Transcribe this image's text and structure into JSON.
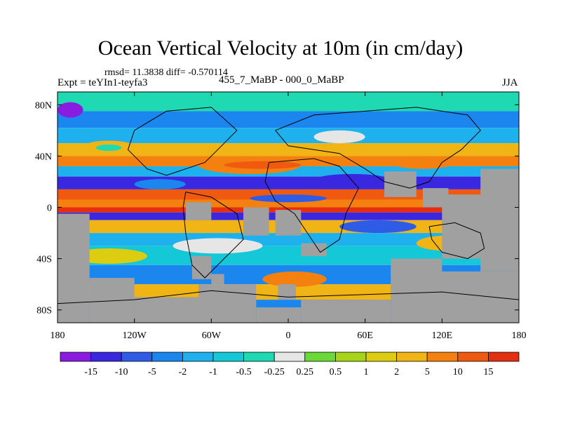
{
  "chart_data": {
    "type": "heatmap",
    "title": "Ocean Vertical Velocity at 10m (in cm/day)",
    "stats_line": "rmsd= 11.3838 diff= -0.570114",
    "experiment_label": "Expt = teYIn1-teyfa3",
    "case_label": "455_7_MaBP - 000_0_MaBP",
    "season_label": "JJA",
    "x_axis": {
      "range": [
        -180,
        180
      ],
      "ticks": [
        {
          "value": -180,
          "label": "180"
        },
        {
          "value": -120,
          "label": "120W"
        },
        {
          "value": -60,
          "label": "60W"
        },
        {
          "value": 0,
          "label": "0"
        },
        {
          "value": 60,
          "label": "60E"
        },
        {
          "value": 120,
          "label": "120E"
        },
        {
          "value": 180,
          "label": "180"
        }
      ]
    },
    "y_axis": {
      "range": [
        -90,
        90
      ],
      "ticks": [
        {
          "value": 80,
          "label": "80N"
        },
        {
          "value": 40,
          "label": "40N"
        },
        {
          "value": 0,
          "label": "0"
        },
        {
          "value": -40,
          "label": "40S"
        },
        {
          "value": -80,
          "label": "80S"
        }
      ]
    },
    "colorbar": {
      "colors": [
        "#8a1be0",
        "#3a28e0",
        "#2f5ce6",
        "#1a86ee",
        "#1eb1ee",
        "#15c8d8",
        "#1fd9b2",
        "#e6e6e6",
        "#6ad836",
        "#a7d416",
        "#dccd10",
        "#f0b414",
        "#f4800f",
        "#ef5a10",
        "#e42f10"
      ],
      "labels": [
        "-15",
        "-10",
        "-5",
        "-2",
        "-1",
        "-0.5",
        "-0.25",
        "0.25",
        "0.5",
        "1",
        "2",
        "5",
        "10",
        "15"
      ]
    },
    "zonal_bands": [
      {
        "lat_top": 90,
        "lat_bottom": 75,
        "level": 6
      },
      {
        "lat_top": 75,
        "lat_bottom": 62,
        "level": 3
      },
      {
        "lat_top": 62,
        "lat_bottom": 50,
        "level": 4
      },
      {
        "lat_top": 50,
        "lat_bottom": 40,
        "level": 11
      },
      {
        "lat_top": 40,
        "lat_bottom": 32,
        "level": 12
      },
      {
        "lat_top": 32,
        "lat_bottom": 24,
        "level": 4
      },
      {
        "lat_top": 24,
        "lat_bottom": 14,
        "level": 1
      },
      {
        "lat_top": 14,
        "lat_bottom": 6,
        "level": 13
      },
      {
        "lat_top": 6,
        "lat_bottom": 0,
        "level": 12
      },
      {
        "lat_top": 0,
        "lat_bottom": -4,
        "level": 14
      },
      {
        "lat_top": -4,
        "lat_bottom": -10,
        "level": 1
      },
      {
        "lat_top": -10,
        "lat_bottom": -20,
        "level": 11
      },
      {
        "lat_top": -20,
        "lat_bottom": -30,
        "level": 4
      },
      {
        "lat_top": -30,
        "lat_bottom": -45,
        "level": 5
      },
      {
        "lat_top": -45,
        "lat_bottom": -60,
        "level": 3
      },
      {
        "lat_top": -60,
        "lat_bottom": -72,
        "level": 11
      },
      {
        "lat_top": -72,
        "lat_bottom": -90,
        "level": 3
      }
    ],
    "patches": [
      {
        "lon": [
          -160,
          -120
        ],
        "lat": [
          52,
          42
        ],
        "level": 11
      },
      {
        "lon": [
          -150,
          -130
        ],
        "lat": [
          49,
          44
        ],
        "level": 6
      },
      {
        "lon": [
          -70,
          10
        ],
        "lat": [
          40,
          26
        ],
        "level": 12
      },
      {
        "lon": [
          -50,
          10
        ],
        "lat": [
          36,
          30
        ],
        "level": 13
      },
      {
        "lon": [
          20,
          80
        ],
        "lat": [
          26,
          16
        ],
        "level": 1
      },
      {
        "lon": [
          -120,
          -80
        ],
        "lat": [
          22,
          14
        ],
        "level": 3
      },
      {
        "lon": [
          -30,
          30
        ],
        "lat": [
          10,
          4
        ],
        "level": 2
      },
      {
        "lon": [
          80,
          130
        ],
        "lat": [
          40,
          30
        ],
        "level": 12
      },
      {
        "lon": [
          -170,
          -110
        ],
        "lat": [
          -32,
          -44
        ],
        "level": 10
      },
      {
        "lon": [
          -90,
          -20
        ],
        "lat": [
          -24,
          -36
        ],
        "level": 7
      },
      {
        "lon": [
          40,
          100
        ],
        "lat": [
          -10,
          -20
        ],
        "level": 2
      },
      {
        "lon": [
          100,
          150
        ],
        "lat": [
          -22,
          -34
        ],
        "level": 11
      },
      {
        "lon": [
          -20,
          30
        ],
        "lat": [
          -50,
          -62
        ],
        "level": 12
      },
      {
        "lon": [
          20,
          60
        ],
        "lat": [
          60,
          50
        ],
        "level": 7
      },
      {
        "lon": [
          -180,
          -160
        ],
        "lat": [
          82,
          70
        ],
        "level": 0
      }
    ],
    "land_masks": [
      {
        "lon": [
          -180,
          -155
        ],
        "lat": [
          -5,
          -90
        ]
      },
      {
        "lon": [
          -155,
          -120
        ],
        "lat": [
          -55,
          -90
        ]
      },
      {
        "lon": [
          -120,
          -70
        ],
        "lat": [
          -70,
          -90
        ]
      },
      {
        "lon": [
          -70,
          -25
        ],
        "lat": [
          -60,
          -90
        ]
      },
      {
        "lon": [
          -25,
          10
        ],
        "lat": [
          -78,
          -90
        ]
      },
      {
        "lon": [
          10,
          80
        ],
        "lat": [
          -72,
          -90
        ]
      },
      {
        "lon": [
          80,
          180
        ],
        "lat": [
          -50,
          -90
        ]
      },
      {
        "lon": [
          80,
          120
        ],
        "lat": [
          -40,
          -52
        ]
      },
      {
        "lon": [
          150,
          180
        ],
        "lat": [
          30,
          -50
        ]
      },
      {
        "lon": [
          120,
          160
        ],
        "lat": [
          10,
          -40
        ]
      },
      {
        "lon": [
          -35,
          -15
        ],
        "lat": [
          0,
          -22
        ]
      },
      {
        "lon": [
          -10,
          10
        ],
        "lat": [
          -2,
          -22
        ]
      },
      {
        "lon": [
          10,
          30
        ],
        "lat": [
          -28,
          -38
        ]
      },
      {
        "lon": [
          -75,
          -60
        ],
        "lat": [
          -38,
          -56
        ]
      },
      {
        "lon": [
          -60,
          -50
        ],
        "lat": [
          -52,
          -60
        ]
      },
      {
        "lon": [
          75,
          100
        ],
        "lat": [
          28,
          8
        ]
      },
      {
        "lon": [
          105,
          125
        ],
        "lat": [
          15,
          0
        ]
      },
      {
        "lon": [
          -80,
          -60
        ],
        "lat": [
          4,
          -10
        ]
      },
      {
        "lon": [
          -8,
          6
        ],
        "lat": [
          -60,
          -72
        ]
      }
    ],
    "continent_outlines": [
      [
        [
          -120,
          60
        ],
        [
          -95,
          75
        ],
        [
          -60,
          78
        ],
        [
          -40,
          60
        ],
        [
          -55,
          45
        ],
        [
          -65,
          35
        ],
        [
          -80,
          30
        ],
        [
          -95,
          25
        ],
        [
          -110,
          30
        ],
        [
          -125,
          45
        ],
        [
          -120,
          60
        ]
      ],
      [
        [
          -80,
          12
        ],
        [
          -60,
          8
        ],
        [
          -40,
          -5
        ],
        [
          -35,
          -25
        ],
        [
          -50,
          -40
        ],
        [
          -65,
          -55
        ],
        [
          -75,
          -45
        ],
        [
          -80,
          -20
        ],
        [
          -82,
          0
        ],
        [
          -80,
          12
        ]
      ],
      [
        [
          -15,
          35
        ],
        [
          20,
          38
        ],
        [
          40,
          32
        ],
        [
          55,
          15
        ],
        [
          45,
          -5
        ],
        [
          40,
          -25
        ],
        [
          25,
          -35
        ],
        [
          15,
          -20
        ],
        [
          5,
          -5
        ],
        [
          -10,
          5
        ],
        [
          -18,
          20
        ],
        [
          -15,
          35
        ]
      ],
      [
        [
          -10,
          60
        ],
        [
          20,
          72
        ],
        [
          60,
          75
        ],
        [
          100,
          78
        ],
        [
          140,
          72
        ],
        [
          150,
          60
        ],
        [
          135,
          45
        ],
        [
          120,
          35
        ],
        [
          110,
          20
        ],
        [
          95,
          15
        ],
        [
          75,
          20
        ],
        [
          60,
          30
        ],
        [
          40,
          42
        ],
        [
          20,
          45
        ],
        [
          0,
          48
        ],
        [
          -10,
          60
        ]
      ],
      [
        [
          110,
          -15
        ],
        [
          130,
          -12
        ],
        [
          150,
          -20
        ],
        [
          153,
          -32
        ],
        [
          140,
          -40
        ],
        [
          120,
          -35
        ],
        [
          112,
          -25
        ],
        [
          110,
          -15
        ]
      ],
      [
        [
          -180,
          -75
        ],
        [
          -120,
          -72
        ],
        [
          -60,
          -65
        ],
        [
          0,
          -70
        ],
        [
          60,
          -68
        ],
        [
          120,
          -66
        ],
        [
          180,
          -72
        ]
      ]
    ]
  }
}
